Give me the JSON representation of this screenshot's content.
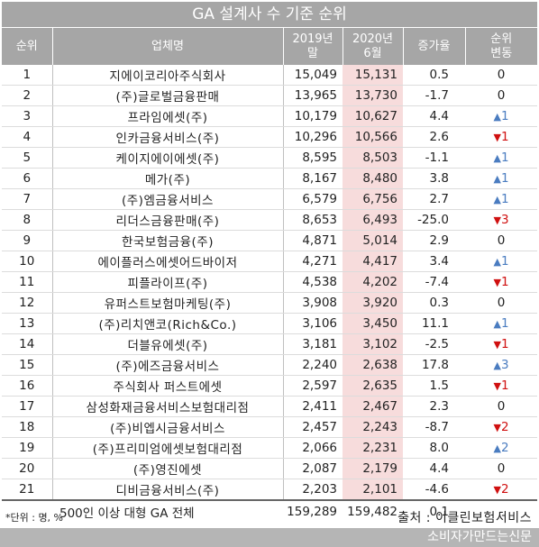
{
  "title": "GA 설계사 수 기준 순위",
  "headers": {
    "rank": "순위",
    "company": "업체명",
    "y2019_line1": "2019년",
    "y2019_line2": "말",
    "y2020_line1": "2020년",
    "y2020_line2": "6월",
    "rate": "증가율",
    "change_line1": "순위",
    "change_line2": "변동"
  },
  "rows": [
    {
      "rank": "1",
      "name": "지에이코리아주식회사",
      "v2019": "15,049",
      "v2020": "15,131",
      "rate": "0.5",
      "change": "0",
      "dir": "none"
    },
    {
      "rank": "2",
      "name": "(주)글로벌금융판매",
      "v2019": "13,965",
      "v2020": "13,730",
      "rate": "-1.7",
      "change": "0",
      "dir": "none"
    },
    {
      "rank": "3",
      "name": "프라임에셋(주)",
      "v2019": "10,179",
      "v2020": "10,627",
      "rate": "4.4",
      "change": "1",
      "dir": "up"
    },
    {
      "rank": "4",
      "name": "인카금융서비스(주)",
      "v2019": "10,296",
      "v2020": "10,566",
      "rate": "2.6",
      "change": "1",
      "dir": "down"
    },
    {
      "rank": "5",
      "name": "케이지에이에셋(주)",
      "v2019": "8,595",
      "v2020": "8,503",
      "rate": "-1.1",
      "change": "1",
      "dir": "up"
    },
    {
      "rank": "6",
      "name": "메가(주)",
      "v2019": "8,167",
      "v2020": "8,480",
      "rate": "3.8",
      "change": "1",
      "dir": "up"
    },
    {
      "rank": "7",
      "name": "(주)엠금융서비스",
      "v2019": "6,579",
      "v2020": "6,756",
      "rate": "2.7",
      "change": "1",
      "dir": "up"
    },
    {
      "rank": "8",
      "name": "리더스금융판매(주)",
      "v2019": "8,653",
      "v2020": "6,493",
      "rate": "-25.0",
      "change": "3",
      "dir": "down"
    },
    {
      "rank": "9",
      "name": "한국보험금융(주)",
      "v2019": "4,871",
      "v2020": "5,014",
      "rate": "2.9",
      "change": "0",
      "dir": "none"
    },
    {
      "rank": "10",
      "name": "에이플러스에셋어드바이저",
      "v2019": "4,271",
      "v2020": "4,417",
      "rate": "3.4",
      "change": "1",
      "dir": "up"
    },
    {
      "rank": "11",
      "name": "피플라이프(주)",
      "v2019": "4,538",
      "v2020": "4,202",
      "rate": "-7.4",
      "change": "1",
      "dir": "down"
    },
    {
      "rank": "12",
      "name": "유퍼스트보험마케팅(주)",
      "v2019": "3,908",
      "v2020": "3,920",
      "rate": "0.3",
      "change": "0",
      "dir": "none"
    },
    {
      "rank": "13",
      "name": "(주)리치앤코(Rich&Co.)",
      "v2019": "3,106",
      "v2020": "3,450",
      "rate": "11.1",
      "change": "1",
      "dir": "up"
    },
    {
      "rank": "14",
      "name": "더블유에셋(주)",
      "v2019": "3,181",
      "v2020": "3,102",
      "rate": "-2.5",
      "change": "1",
      "dir": "down"
    },
    {
      "rank": "15",
      "name": "(주)에즈금융서비스",
      "v2019": "2,240",
      "v2020": "2,638",
      "rate": "17.8",
      "change": "3",
      "dir": "up"
    },
    {
      "rank": "16",
      "name": "주식회사 퍼스트에셋",
      "v2019": "2,597",
      "v2020": "2,635",
      "rate": "1.5",
      "change": "1",
      "dir": "down"
    },
    {
      "rank": "17",
      "name": "삼성화재금융서비스보험대리점",
      "v2019": "2,411",
      "v2020": "2,467",
      "rate": "2.3",
      "change": "0",
      "dir": "none"
    },
    {
      "rank": "18",
      "name": "(주)비엡시금융서비스",
      "v2019": "2,457",
      "v2020": "2,243",
      "rate": "-8.7",
      "change": "2",
      "dir": "down"
    },
    {
      "rank": "19",
      "name": "(주)프리미엄에셋보험대리점",
      "v2019": "2,066",
      "v2020": "2,231",
      "rate": "8.0",
      "change": "2",
      "dir": "up"
    },
    {
      "rank": "20",
      "name": "(주)영진에셋",
      "v2019": "2,087",
      "v2020": "2,179",
      "rate": "4.4",
      "change": "0",
      "dir": "none"
    },
    {
      "rank": "21",
      "name": "디비금융서비스(주)",
      "v2019": "2,203",
      "v2020": "2,101",
      "rate": "-4.6",
      "change": "2",
      "dir": "down"
    }
  ],
  "total": {
    "name": "500인 이상 대형 GA 전체",
    "v2019": "159,289",
    "v2020": "159,482",
    "rate": "0.1",
    "change": "-"
  },
  "note": "*단위 : 명, %",
  "source": "출처 : 이클린보험서비스",
  "brand": "소비자가만드는신문",
  "colors": {
    "header_bg": "#a6a6a6",
    "highlight": "#f7dcdc",
    "up": "#4a7cc0",
    "down": "#d01010"
  },
  "icons": {
    "up": "triangle-up-icon",
    "down": "triangle-down-icon"
  }
}
